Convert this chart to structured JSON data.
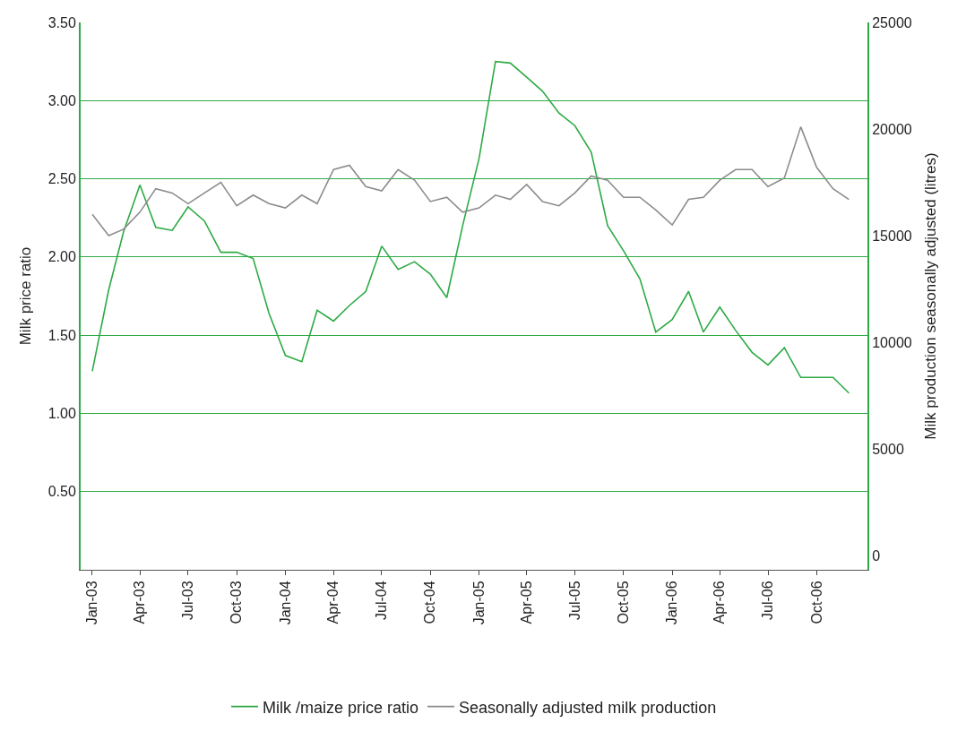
{
  "chart_data": {
    "type": "line",
    "ylabel": "Milk price ratio",
    "y2label": "Milk production seasonally adjusted (litres)",
    "x": [
      "2003-01",
      "2003-02",
      "2003-03",
      "2003-04",
      "2003-05",
      "2003-06",
      "2003-07",
      "2003-08",
      "2003-09",
      "2003-10",
      "2003-11",
      "2003-12",
      "2004-01",
      "2004-02",
      "2004-03",
      "2004-04",
      "2004-05",
      "2004-06",
      "2004-07",
      "2004-08",
      "2004-09",
      "2004-10",
      "2004-11",
      "2004-12",
      "2005-01",
      "2005-02",
      "2005-03",
      "2005-04",
      "2005-05",
      "2005-06",
      "2005-07",
      "2005-08",
      "2005-09",
      "2005-10",
      "2005-11",
      "2005-12",
      "2006-01",
      "2006-02",
      "2006-03",
      "2006-04",
      "2006-05",
      "2006-06",
      "2006-07",
      "2006-08",
      "2006-09",
      "2006-10",
      "2006-11",
      "2006-12"
    ],
    "series": [
      {
        "name": "Milk /maize price ratio",
        "color": "#2eaa45",
        "values": [
          1.27,
          1.79,
          2.16,
          2.46,
          2.19,
          2.17,
          2.32,
          2.23,
          2.03,
          2.03,
          1.99,
          1.64,
          1.37,
          1.33,
          1.66,
          1.59,
          1.69,
          1.78,
          2.07,
          1.92,
          1.97,
          1.89,
          1.74,
          2.2,
          2.63,
          3.25,
          3.24,
          3.15,
          3.06,
          2.92,
          2.84,
          2.67,
          2.2,
          2.04,
          1.86,
          1.52,
          1.6,
          1.78,
          1.52,
          1.68,
          1.53,
          1.39,
          1.31,
          1.42,
          1.23,
          1.23,
          1.23,
          1.13
        ]
      },
      {
        "name": "Seasonally adjusted milk production",
        "color": "#8c8c8c",
        "axis": "y2",
        "values": [
          16000,
          15000,
          15300,
          16100,
          17200,
          17000,
          16500,
          17000,
          17500,
          16400,
          16900,
          16500,
          16300,
          16900,
          16500,
          18100,
          18300,
          17300,
          17100,
          18100,
          17600,
          16600,
          16800,
          16100,
          16300,
          16900,
          16700,
          17400,
          16600,
          16400,
          17000,
          17800,
          17600,
          16800,
          16800,
          16200,
          15500,
          16700,
          16800,
          17600,
          18100,
          18100,
          17300,
          17700,
          20100,
          18200,
          17200,
          16700
        ]
      }
    ],
    "xlim": [
      "2002-12-10",
      "2007-01-05"
    ],
    "xticks": [
      {
        "value": "2003-01",
        "label": "Jan-03"
      },
      {
        "value": "2003-04",
        "label": "Apr-03"
      },
      {
        "value": "2003-07",
        "label": "Jul-03"
      },
      {
        "value": "2003-10",
        "label": "Oct-03"
      },
      {
        "value": "2004-01",
        "label": "Jan-04"
      },
      {
        "value": "2004-04",
        "label": "Apr-04"
      },
      {
        "value": "2004-07",
        "label": "Jul-04"
      },
      {
        "value": "2004-10",
        "label": "Oct-04"
      },
      {
        "value": "2005-01",
        "label": "Jan-05"
      },
      {
        "value": "2005-04",
        "label": "Apr-05"
      },
      {
        "value": "2005-07",
        "label": "Jul-05"
      },
      {
        "value": "2005-10",
        "label": "Oct-05"
      },
      {
        "value": "2006-01",
        "label": "Jan-06"
      },
      {
        "value": "2006-04",
        "label": "Apr-06"
      },
      {
        "value": "2006-07",
        "label": "Jul-06"
      },
      {
        "value": "2006-10",
        "label": "Oct-06"
      }
    ],
    "ylim": [
      0,
      3.5
    ],
    "yticks": [
      {
        "value": 0.5,
        "label": "0.50"
      },
      {
        "value": 1,
        "label": "1.00"
      },
      {
        "value": 1.5,
        "label": "1.50"
      },
      {
        "value": 2,
        "label": "2.00"
      },
      {
        "value": 2.5,
        "label": "2.50"
      },
      {
        "value": 3,
        "label": "3.00"
      },
      {
        "value": 3.5,
        "label": "3.50"
      }
    ],
    "y2lim": [
      -670,
      25000
    ],
    "y2ticks": [
      0,
      5000,
      10000,
      15000,
      20000,
      25000
    ],
    "grid": "y",
    "legend": "bottom",
    "marker": "none",
    "line_style": "solid"
  }
}
